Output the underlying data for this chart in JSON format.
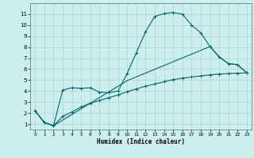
{
  "title": "",
  "xlabel": "Humidex (Indice chaleur)",
  "background_color": "#cceeed",
  "grid_color": "#aad4d4",
  "line_color": "#006868",
  "xlim": [
    -0.5,
    23.5
  ],
  "ylim": [
    0.5,
    12.0
  ],
  "yticks": [
    1,
    2,
    3,
    4,
    5,
    6,
    7,
    8,
    9,
    10,
    11
  ],
  "xticks": [
    0,
    1,
    2,
    3,
    4,
    5,
    6,
    7,
    8,
    9,
    10,
    11,
    12,
    13,
    14,
    15,
    16,
    17,
    18,
    19,
    20,
    21,
    22,
    23
  ],
  "series1_x": [
    0,
    1,
    2,
    3,
    4,
    5,
    6,
    7,
    8,
    9,
    10,
    11,
    12,
    13,
    14,
    15,
    16,
    17,
    18,
    19,
    20,
    21,
    22,
    23
  ],
  "series1_y": [
    2.2,
    1.15,
    0.85,
    4.1,
    4.3,
    4.25,
    4.3,
    3.9,
    3.85,
    4.0,
    5.6,
    7.5,
    9.4,
    10.8,
    11.05,
    11.15,
    11.0,
    10.0,
    9.3,
    8.05,
    7.1,
    6.5,
    6.4,
    5.65
  ],
  "series2_x": [
    0,
    1,
    2,
    3,
    4,
    5,
    6,
    7,
    8,
    9,
    10,
    11,
    12,
    13,
    14,
    15,
    16,
    17,
    18,
    19,
    20,
    21,
    22,
    23
  ],
  "series2_y": [
    2.2,
    1.15,
    0.85,
    1.7,
    2.1,
    2.55,
    2.9,
    3.15,
    3.4,
    3.65,
    3.95,
    4.2,
    4.45,
    4.65,
    4.85,
    5.05,
    5.18,
    5.28,
    5.38,
    5.48,
    5.55,
    5.6,
    5.63,
    5.65
  ],
  "series3_x": [
    0,
    1,
    2,
    10,
    19,
    20,
    21,
    22,
    23
  ],
  "series3_y": [
    2.2,
    1.15,
    0.85,
    4.95,
    8.05,
    7.1,
    6.5,
    6.4,
    5.65
  ]
}
